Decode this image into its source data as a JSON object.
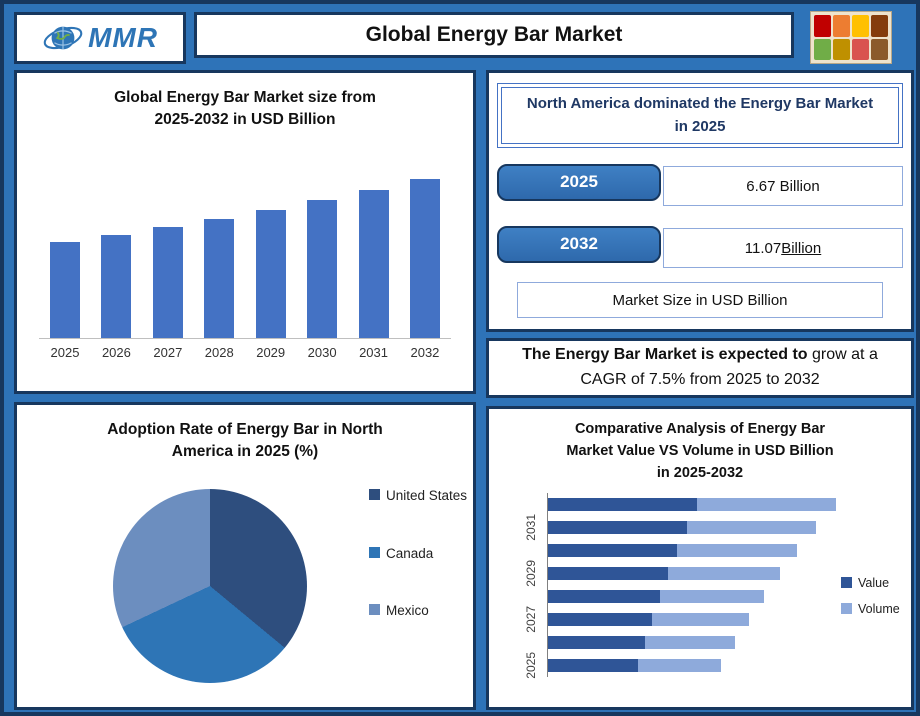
{
  "header": {
    "title": "Global Energy Bar Market",
    "logo_text": "MMR"
  },
  "colors": {
    "background": "#2E73B8",
    "panel_border": "#17375E",
    "accent_blue": "#2E75B6",
    "bar_blue": "#4472C4",
    "value_dark": "#2F5597",
    "volume_light": "#8EAADB"
  },
  "panels": {
    "market_size": {
      "title_line1": "Global Energy Bar Market size from",
      "title_line2": "2025-2032 in USD Billion"
    },
    "north_america": {
      "heading_line1": "North America dominated the Energy Bar Market",
      "heading_line2": "in 2025",
      "rows": [
        {
          "year": "2025",
          "value": "6.67 Billion",
          "underline": ""
        },
        {
          "year": "2032",
          "value": "11.07 ",
          "underline": "Billion"
        }
      ],
      "footer": "Market Size in USD Billion"
    },
    "cagr": {
      "bold": "The Energy Bar Market is expected to",
      "rest": " grow at a CAGR of 7.5% from 2025 to 2032"
    },
    "adoption": {
      "title_line1": "Adoption Rate of Energy Bar in North",
      "title_line2": "America in 2025 (%)"
    },
    "comparative": {
      "title_line1": "Comparative Analysis of Energy Bar",
      "title_line2": "Market Value VS Volume in USD Billion",
      "title_line3": "in 2025-2032"
    }
  },
  "chart_data": [
    {
      "type": "bar",
      "title": "Global Energy Bar Market size from 2025-2032 in USD Billion",
      "categories": [
        "2025",
        "2026",
        "2027",
        "2028",
        "2029",
        "2030",
        "2031",
        "2032"
      ],
      "values": [
        6.67,
        7.17,
        7.71,
        8.29,
        8.91,
        9.58,
        10.3,
        11.07
      ],
      "ylabel": "USD Billion",
      "bar_color": "#4472C4",
      "grid": false,
      "ylim": [
        0,
        12
      ]
    },
    {
      "type": "pie",
      "title": "Adoption Rate of Energy Bar in North America in 2025 (%)",
      "labels": [
        "United States",
        "Canada",
        "Mexico"
      ],
      "values": [
        36,
        32,
        32
      ],
      "colors": [
        "#2E4E7E",
        "#2E75B6",
        "#6C8EBF"
      ],
      "legend_position": "right"
    },
    {
      "type": "stacked-bar-horizontal",
      "title": "Comparative Analysis of Energy Bar Market Value VS Volume in USD Billion in 2025-2032",
      "categories": [
        "2025",
        "2026",
        "2027",
        "2028",
        "2029",
        "2030",
        "2031",
        "2032"
      ],
      "series": [
        {
          "name": "Value",
          "color": "#2F5597",
          "values": [
            6.67,
            7.17,
            7.71,
            8.29,
            8.91,
            9.58,
            10.3,
            11.07
          ]
        },
        {
          "name": "Volume",
          "color": "#8EAADB",
          "values": [
            6.2,
            6.7,
            7.2,
            7.7,
            8.3,
            8.9,
            9.6,
            10.3
          ]
        }
      ],
      "axis_labels_shown": [
        "2025",
        "2027",
        "2029",
        "2031"
      ],
      "legend_position": "right"
    }
  ]
}
